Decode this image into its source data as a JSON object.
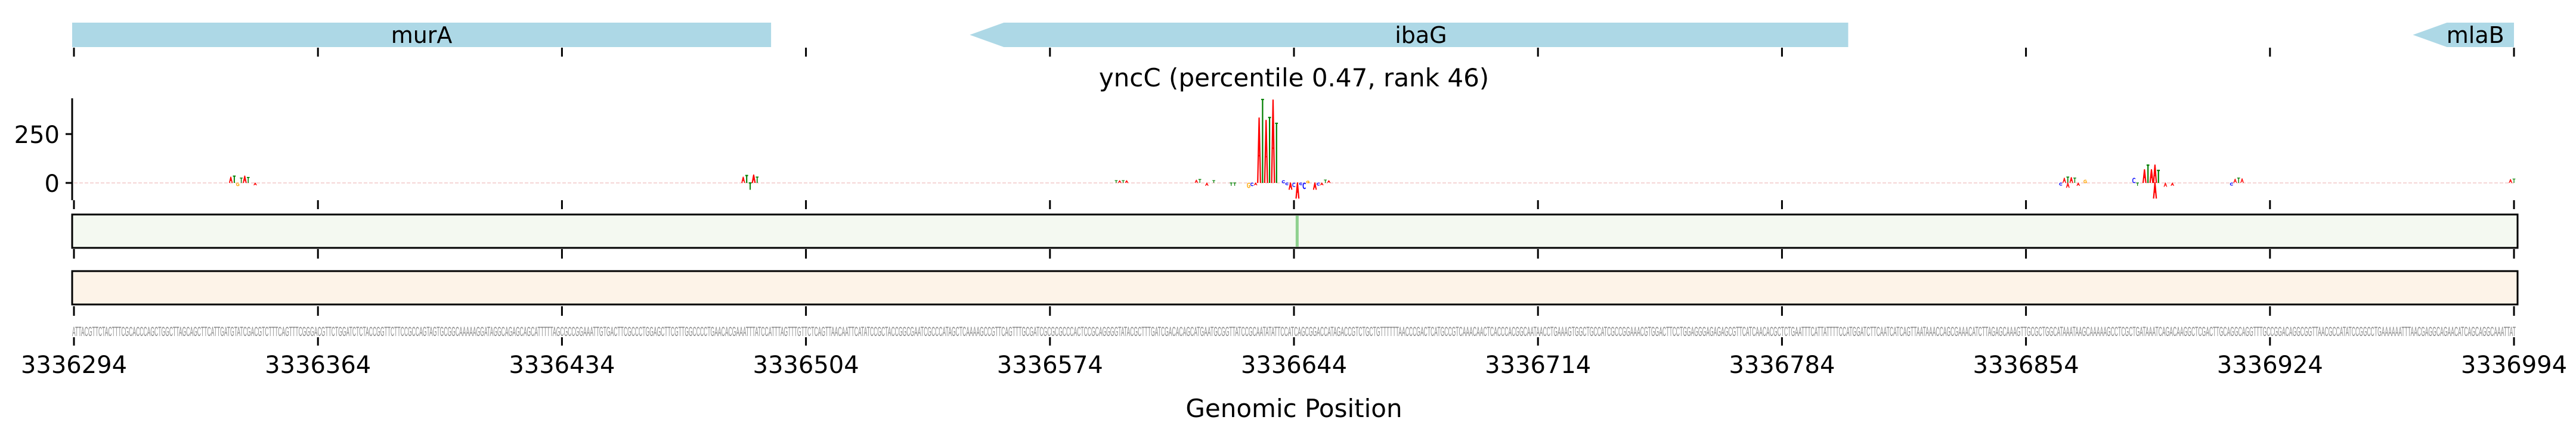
{
  "genes": [
    {
      "name": "murA",
      "start": 3336293,
      "end": 3336494,
      "direction": "none"
    },
    {
      "name": "ibaG",
      "start": 3336551,
      "end": 3336803,
      "direction": "left"
    },
    {
      "name": "mlaB",
      "start": 3336965,
      "end": 3336994,
      "direction": "left"
    }
  ],
  "colors": {
    "gene_fill": "#add8e6",
    "A": "#ff0000",
    "C": "#0000ff",
    "G": "#ffa500",
    "T": "#008000",
    "green_track_fill": "#f4f9f1",
    "green_track_mark": "#8fd18f",
    "orange_track_fill": "#fdf3e8"
  },
  "chart_data": {
    "type": "logo",
    "title": "yncC (percentile 0.47, rank 46)",
    "xlabel": "Genomic Position",
    "ylabel": "",
    "xlim": [
      3336294,
      3336994
    ],
    "ylim": [
      -90,
      430
    ],
    "x_ticks": [
      "3336294",
      "3336364",
      "3336434",
      "3336504",
      "3336574",
      "3336644",
      "3336714",
      "3336784",
      "3336854",
      "3336924",
      "3336994"
    ],
    "x_tick_values": [
      3336294,
      3336364,
      3336434,
      3336504,
      3336574,
      3336644,
      3336714,
      3336784,
      3336854,
      3336924,
      3336994
    ],
    "y_ticks": [
      "250",
      "0"
    ],
    "y_tick_values": [
      250,
      0
    ],
    "grid": false,
    "highlights": [
      {
        "pos": 3336339,
        "base": "A",
        "value": 30
      },
      {
        "pos": 3336340,
        "base": "T",
        "value": 35
      },
      {
        "pos": 3336341,
        "base": "G",
        "value": -15
      },
      {
        "pos": 3336342,
        "base": "T",
        "value": 25
      },
      {
        "pos": 3336343,
        "base": "A",
        "value": 35
      },
      {
        "pos": 3336344,
        "base": "T",
        "value": 28
      },
      {
        "pos": 3336346,
        "base": "A",
        "value": -12
      },
      {
        "pos": 3336486,
        "base": "A",
        "value": 30
      },
      {
        "pos": 3336487,
        "base": "T",
        "value": 38
      },
      {
        "pos": 3336488,
        "base": "T",
        "value": -35
      },
      {
        "pos": 3336489,
        "base": "A",
        "value": 40
      },
      {
        "pos": 3336490,
        "base": "T",
        "value": 30
      },
      {
        "pos": 3336593,
        "base": "T",
        "value": 12
      },
      {
        "pos": 3336594,
        "base": "A",
        "value": 12
      },
      {
        "pos": 3336595,
        "base": "T",
        "value": 12
      },
      {
        "pos": 3336596,
        "base": "A",
        "value": 12
      },
      {
        "pos": 3336616,
        "base": "A",
        "value": 15
      },
      {
        "pos": 3336617,
        "base": "T",
        "value": 18
      },
      {
        "pos": 3336619,
        "base": "A",
        "value": -15
      },
      {
        "pos": 3336621,
        "base": "T",
        "value": 12
      },
      {
        "pos": 3336626,
        "base": "T",
        "value": -15
      },
      {
        "pos": 3336627,
        "base": "T",
        "value": -15
      },
      {
        "pos": 3336631,
        "base": "G",
        "value": -25
      },
      {
        "pos": 3336632,
        "base": "C",
        "value": -15
      },
      {
        "pos": 3336633,
        "base": "A",
        "value": -12
      },
      {
        "pos": 3336634,
        "base": "A",
        "value": 332
      },
      {
        "pos": 3336635,
        "base": "T",
        "value": 427
      },
      {
        "pos": 3336636,
        "base": "A",
        "value": 320
      },
      {
        "pos": 3336637,
        "base": "T",
        "value": 335
      },
      {
        "pos": 3336638,
        "base": "A",
        "value": 424
      },
      {
        "pos": 3336639,
        "base": "T",
        "value": 305
      },
      {
        "pos": 3336641,
        "base": "C",
        "value": 12
      },
      {
        "pos": 3336642,
        "base": "C",
        "value": -10
      },
      {
        "pos": 3336643,
        "base": "A",
        "value": -35
      },
      {
        "pos": 3336644,
        "base": "C",
        "value": -20
      },
      {
        "pos": 3336645,
        "base": "A",
        "value": -80
      },
      {
        "pos": 3336646,
        "base": "C",
        "value": -10
      },
      {
        "pos": 3336647,
        "base": "C",
        "value": -30
      },
      {
        "pos": 3336648,
        "base": "G",
        "value": 10
      },
      {
        "pos": 3336650,
        "base": "A",
        "value": -35
      },
      {
        "pos": 3336651,
        "base": "C",
        "value": -12
      },
      {
        "pos": 3336652,
        "base": "A",
        "value": -12
      },
      {
        "pos": 3336653,
        "base": "T",
        "value": 15
      },
      {
        "pos": 3336654,
        "base": "A",
        "value": 12
      },
      {
        "pos": 3336864,
        "base": "C",
        "value": -12
      },
      {
        "pos": 3336865,
        "base": "A",
        "value": 25
      },
      {
        "pos": 3336866,
        "base": "T",
        "value": 30
      },
      {
        "pos": 3336866,
        "base": "A",
        "value": -25
      },
      {
        "pos": 3336867,
        "base": "A",
        "value": 28
      },
      {
        "pos": 3336868,
        "base": "T",
        "value": 25
      },
      {
        "pos": 3336869,
        "base": "A",
        "value": -15
      },
      {
        "pos": 3336871,
        "base": "G",
        "value": 15
      },
      {
        "pos": 3336885,
        "base": "C",
        "value": 25
      },
      {
        "pos": 3336886,
        "base": "T",
        "value": -15
      },
      {
        "pos": 3336888,
        "base": "A",
        "value": 67
      },
      {
        "pos": 3336889,
        "base": "T",
        "value": 91
      },
      {
        "pos": 3336890,
        "base": "A",
        "value": 67
      },
      {
        "pos": 3336891,
        "base": "A",
        "value": 91
      },
      {
        "pos": 3336891,
        "base": "A",
        "value": -80
      },
      {
        "pos": 3336892,
        "base": "T",
        "value": 64
      },
      {
        "pos": 3336894,
        "base": "A",
        "value": -20
      },
      {
        "pos": 3336896,
        "base": "A",
        "value": -15
      },
      {
        "pos": 3336913,
        "base": "C",
        "value": -12
      },
      {
        "pos": 3336914,
        "base": "A",
        "value": 20
      },
      {
        "pos": 3336915,
        "base": "T",
        "value": 25
      },
      {
        "pos": 3336916,
        "base": "A",
        "value": 22
      },
      {
        "pos": 3336993,
        "base": "A",
        "value": 18
      },
      {
        "pos": 3336994,
        "base": "T",
        "value": 20
      }
    ]
  },
  "tracks": {
    "green_track_marks": [
      3336645
    ],
    "sequence": "ATTACGTTCTACTTTCGCACCCAGCTGGCTTAGCAGCTTCATTGATGTATCGACGTCTTTCAGTTTCGGGACGTTCTGGATCTCTACCGGTTCTTCCGCCAGTAGTGCGGCAAAAAGGATAGGCAGAGCAGCATTTTTAGCGCCGGAAATTGTGACTTCGCCCTGGAGCTTCGTTGGCCCCTGAACACGAAATTTATCCATTTAGTTTGTTCTCAGTTAACAATTCATATCCGCTACCGGCGAATCGCCCATAGCTCAAAAGCCGTTCAGTTTGCGATCGCGCGCCCACTCCGCAGGGGTATACGCTTTGATCGACACAGCATGAATGCGGTTATCCGCAATATATTCCATCAGCGGACCATAGACCGTCTGCTGTTTTTTAACCCGACTCATGCCGTCAAACAACTCACCCACGGCAATAACCTGAAAGTGGCTGCCATCGCCGGAAACGTGGACTTCCTGGAGGGAGAGAGCGTTCATCAACACGCTCTGAATTTCATTATTTTCCATGGATCTTCAATCATCAGTTAATAAACCAGCGAAACATCTTAGAGCAAAGTTGCGCTGGCATAAATAAGCAAAAAGCCTCGCTGATAAATCAGACAAGGCTCGACTTGCAGGCAGGTTTGCCGGACAGGCGGTTAACGCCATATCCGGCCTGAAAAAATTTAACGAGGCAGAACATCAGCAGGCAAATTAT"
  }
}
